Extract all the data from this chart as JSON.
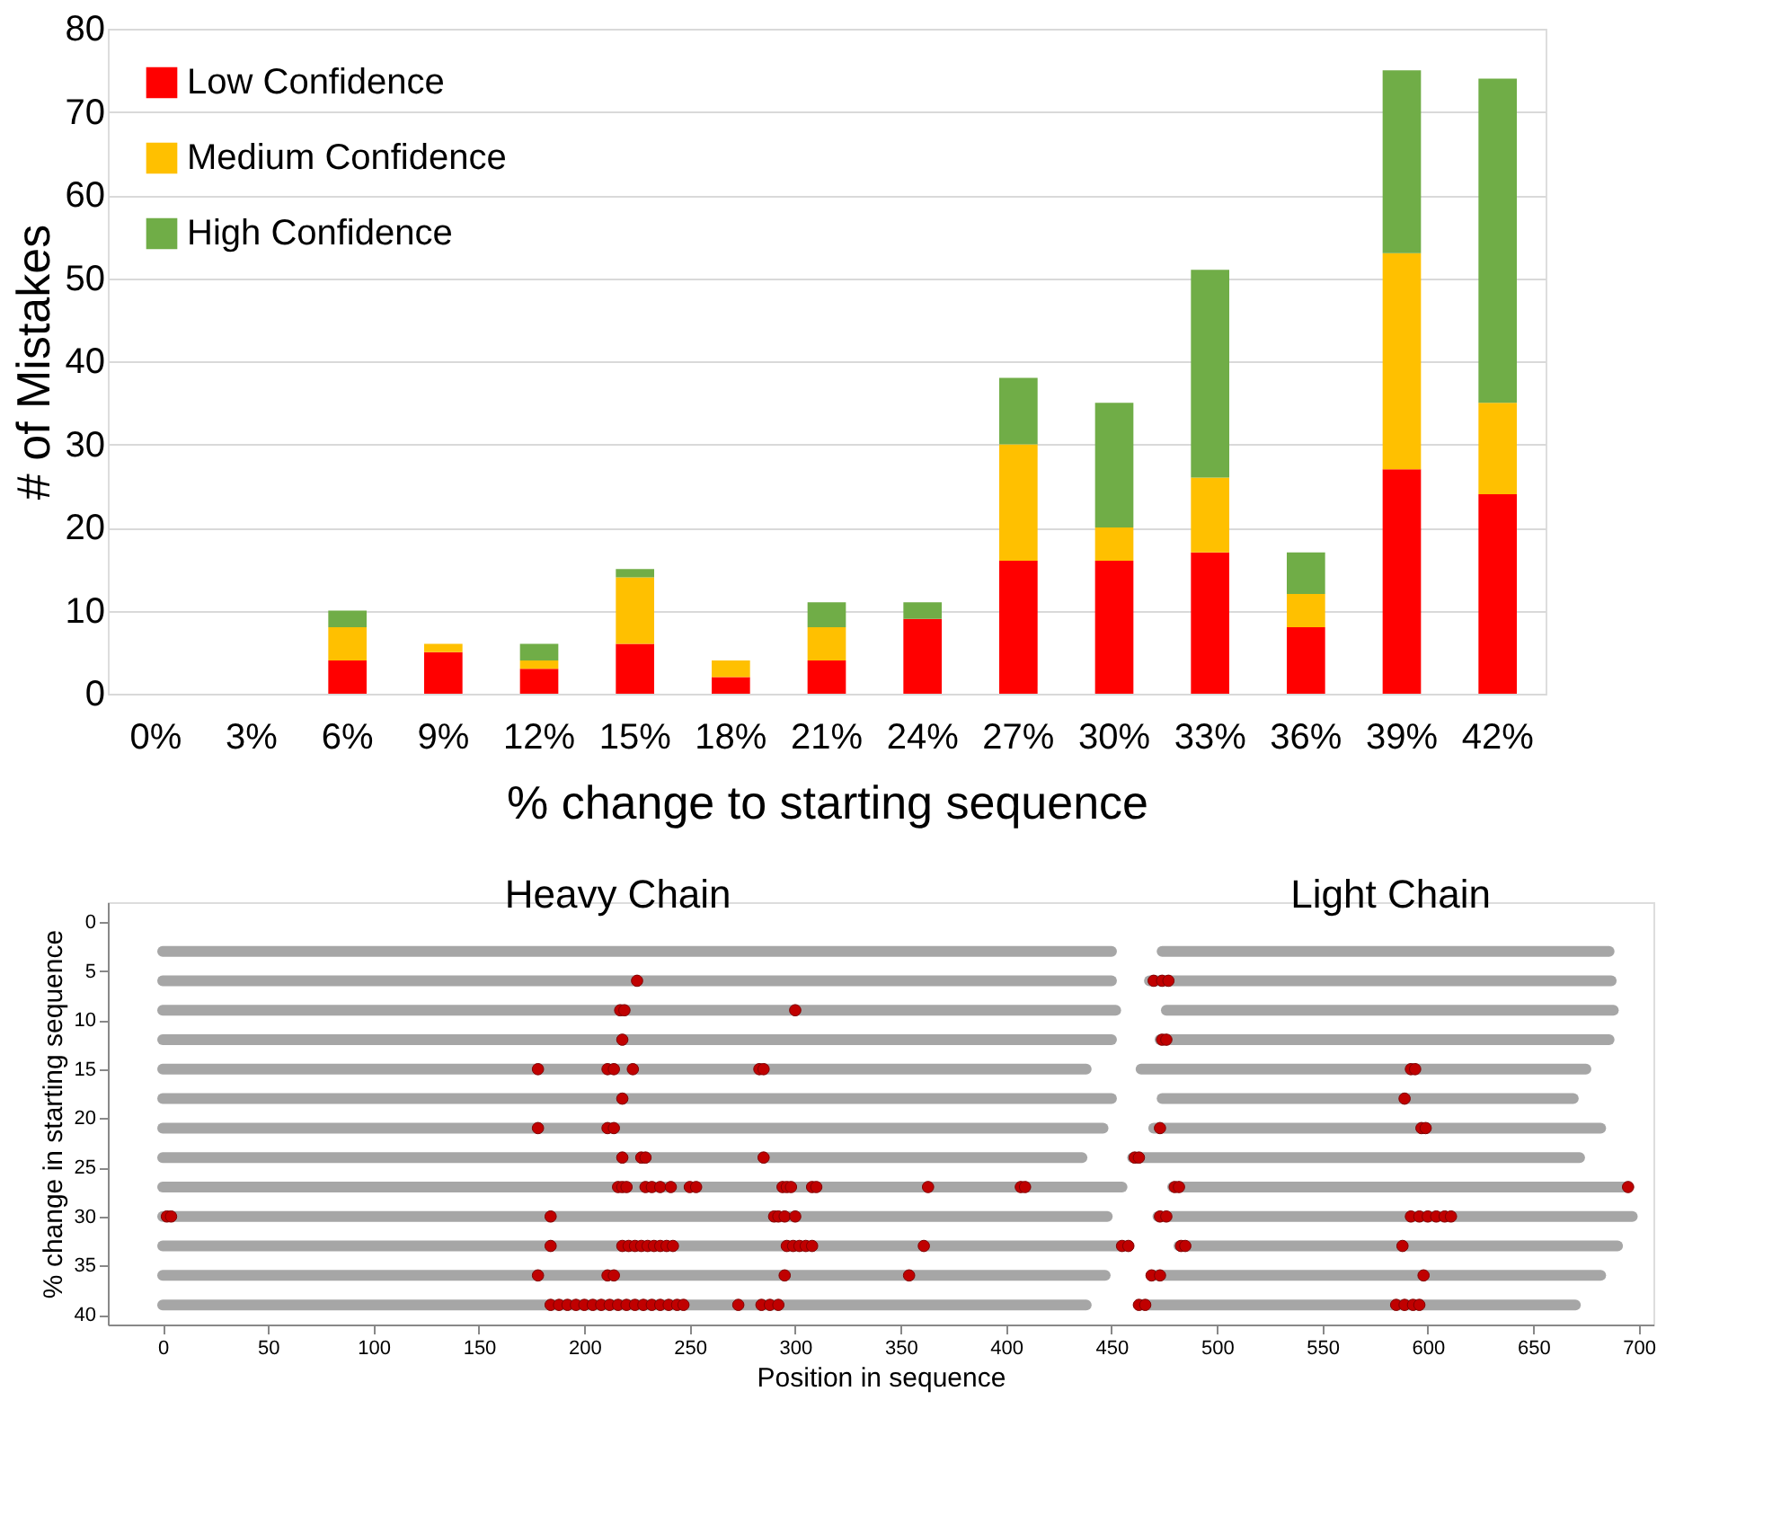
{
  "chart_data": [
    {
      "type": "bar",
      "stacked": true,
      "xlabel": "% change to starting sequence",
      "ylabel": "# of Mistakes",
      "categories": [
        "0%",
        "3%",
        "6%",
        "9%",
        "12%",
        "15%",
        "18%",
        "21%",
        "24%",
        "27%",
        "30%",
        "33%",
        "36%",
        "39%",
        "42%"
      ],
      "series": [
        {
          "name": "Low Confidence",
          "color": "#ff0000",
          "values": [
            0,
            0,
            4,
            5,
            3,
            6,
            2,
            4,
            9,
            16,
            16,
            17,
            8,
            27,
            24
          ]
        },
        {
          "name": "Medium Confidence",
          "color": "#ffc000",
          "values": [
            0,
            0,
            4,
            1,
            1,
            8,
            2,
            4,
            0,
            14,
            4,
            9,
            4,
            26,
            11
          ]
        },
        {
          "name": "High Confidence",
          "color": "#70ad47",
          "values": [
            0,
            0,
            2,
            0,
            2,
            1,
            0,
            3,
            2,
            8,
            15,
            25,
            5,
            22,
            39
          ]
        }
      ],
      "ylim": [
        0,
        80
      ],
      "yticks": [
        0,
        10,
        20,
        30,
        40,
        50,
        60,
        70,
        80
      ],
      "grid": "y",
      "legend": "top left"
    },
    {
      "type": "scatter",
      "xlabel": "Position in sequence",
      "ylabel": "% change in starting sequence",
      "xlim": [
        -26,
        707
      ],
      "xticks": [
        0,
        50,
        100,
        150,
        200,
        250,
        300,
        350,
        400,
        450,
        500,
        550,
        600,
        650,
        700
      ],
      "ylim": [
        41,
        -2
      ],
      "yticks": [
        0,
        5,
        10,
        15,
        20,
        25,
        30,
        35,
        40
      ],
      "grid": false,
      "annotations": [
        "Heavy Chain",
        "Light Chain"
      ],
      "series": [
        {
          "type": "line",
          "color": "#a6a6a6",
          "x": [
            0,
            450
          ],
          "values": [
            3,
            3
          ]
        },
        {
          "type": "line",
          "color": "#a6a6a6",
          "x": [
            474,
            686
          ],
          "values": [
            3,
            3
          ]
        },
        {
          "type": "line",
          "color": "#a6a6a6",
          "x": [
            0,
            450
          ],
          "values": [
            6,
            6
          ]
        },
        {
          "type": "line",
          "color": "#a6a6a6",
          "x": [
            468,
            687
          ],
          "values": [
            6,
            6
          ]
        },
        {
          "type": "line",
          "color": "#a6a6a6",
          "x": [
            0,
            452
          ],
          "values": [
            9,
            9
          ]
        },
        {
          "type": "line",
          "color": "#a6a6a6",
          "x": [
            476,
            688
          ],
          "values": [
            9,
            9
          ]
        },
        {
          "type": "line",
          "color": "#a6a6a6",
          "x": [
            0,
            450
          ],
          "values": [
            12,
            12
          ]
        },
        {
          "type": "line",
          "color": "#a6a6a6",
          "x": [
            473,
            686
          ],
          "values": [
            12,
            12
          ]
        },
        {
          "type": "line",
          "color": "#a6a6a6",
          "x": [
            0,
            438
          ],
          "values": [
            15,
            15
          ]
        },
        {
          "type": "line",
          "color": "#a6a6a6",
          "x": [
            464,
            675
          ],
          "values": [
            15,
            15
          ]
        },
        {
          "type": "line",
          "color": "#a6a6a6",
          "x": [
            0,
            450
          ],
          "values": [
            18,
            18
          ]
        },
        {
          "type": "line",
          "color": "#a6a6a6",
          "x": [
            474,
            669
          ],
          "values": [
            18,
            18
          ]
        },
        {
          "type": "line",
          "color": "#a6a6a6",
          "x": [
            0,
            446
          ],
          "values": [
            21,
            21
          ]
        },
        {
          "type": "line",
          "color": "#a6a6a6",
          "x": [
            470,
            682
          ],
          "values": [
            21,
            21
          ]
        },
        {
          "type": "line",
          "color": "#a6a6a6",
          "x": [
            0,
            436
          ],
          "values": [
            24,
            24
          ]
        },
        {
          "type": "line",
          "color": "#a6a6a6",
          "x": [
            460,
            672
          ],
          "values": [
            24,
            24
          ]
        },
        {
          "type": "line",
          "color": "#a6a6a6",
          "x": [
            0,
            455
          ],
          "values": [
            27,
            27
          ]
        },
        {
          "type": "line",
          "color": "#a6a6a6",
          "x": [
            479,
            694
          ],
          "values": [
            27,
            27
          ]
        },
        {
          "type": "line",
          "color": "#a6a6a6",
          "x": [
            0,
            448
          ],
          "values": [
            30,
            30
          ]
        },
        {
          "type": "line",
          "color": "#a6a6a6",
          "x": [
            472,
            697
          ],
          "values": [
            30,
            30
          ]
        },
        {
          "type": "line",
          "color": "#a6a6a6",
          "x": [
            0,
            458
          ],
          "values": [
            33,
            33
          ]
        },
        {
          "type": "line",
          "color": "#a6a6a6",
          "x": [
            482,
            690
          ],
          "values": [
            33,
            33
          ]
        },
        {
          "type": "line",
          "color": "#a6a6a6",
          "x": [
            0,
            447
          ],
          "values": [
            36,
            36
          ]
        },
        {
          "type": "line",
          "color": "#a6a6a6",
          "x": [
            469,
            682
          ],
          "values": [
            36,
            36
          ]
        },
        {
          "type": "line",
          "color": "#a6a6a6",
          "x": [
            0,
            438
          ],
          "values": [
            39,
            39
          ]
        },
        {
          "type": "line",
          "color": "#a6a6a6",
          "x": [
            463,
            670
          ],
          "values": [
            39,
            39
          ]
        },
        {
          "type": "scatter",
          "color": "#c00000",
          "x": [
            225,
            470,
            474,
            477,
            217,
            219,
            300,
            218,
            474,
            476,
            178,
            211,
            214,
            223,
            283,
            285,
            592,
            594,
            218,
            589,
            178,
            211,
            214,
            473,
            597,
            599,
            218,
            227,
            229,
            285,
            461,
            463,
            216,
            218,
            220,
            229,
            232,
            236,
            241,
            250,
            253,
            294,
            296,
            298,
            308,
            310,
            363,
            407,
            409,
            480,
            482,
            695,
            2,
            4,
            184,
            290,
            292,
            295,
            300,
            473,
            476,
            592,
            596,
            600,
            604,
            608,
            611,
            184,
            218,
            221,
            224,
            227,
            230,
            233,
            236,
            239,
            242,
            296,
            299,
            302,
            305,
            308,
            361,
            455,
            458,
            483,
            485,
            588,
            178,
            211,
            214,
            295,
            354,
            469,
            473,
            598,
            184,
            188,
            192,
            196,
            200,
            204,
            208,
            212,
            216,
            220,
            224,
            228,
            232,
            236,
            240,
            244,
            247,
            273,
            284,
            288,
            292,
            463,
            466,
            585,
            589,
            593,
            596
          ],
          "values": [
            6,
            6,
            6,
            6,
            9,
            9,
            9,
            12,
            12,
            12,
            15,
            15,
            15,
            15,
            15,
            15,
            15,
            15,
            18,
            18,
            21,
            21,
            21,
            21,
            21,
            21,
            24,
            24,
            24,
            24,
            24,
            24,
            27,
            27,
            27,
            27,
            27,
            27,
            27,
            27,
            27,
            27,
            27,
            27,
            27,
            27,
            27,
            27,
            27,
            27,
            27,
            27,
            30,
            30,
            30,
            30,
            30,
            30,
            30,
            30,
            30,
            30,
            30,
            30,
            30,
            30,
            30,
            33,
            33,
            33,
            33,
            33,
            33,
            33,
            33,
            33,
            33,
            33,
            33,
            33,
            33,
            33,
            33,
            33,
            33,
            33,
            33,
            33,
            36,
            36,
            36,
            36,
            36,
            36,
            36,
            36,
            39,
            39,
            39,
            39,
            39,
            39,
            39,
            39,
            39,
            39,
            39,
            39,
            39,
            39,
            39,
            39,
            39,
            39,
            39,
            39,
            39,
            39,
            39,
            39,
            39,
            39,
            39
          ]
        }
      ]
    }
  ]
}
